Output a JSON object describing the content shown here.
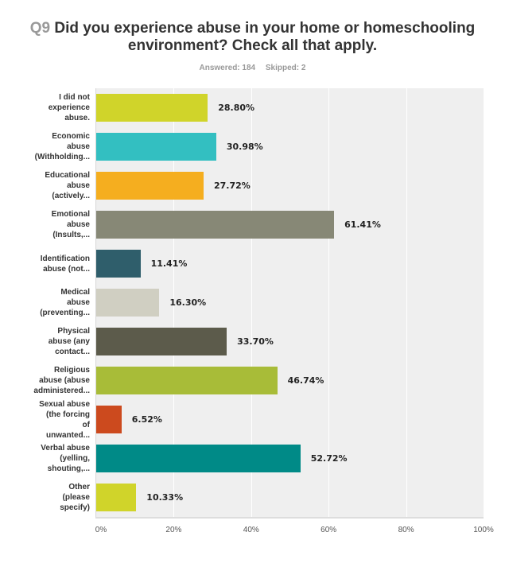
{
  "header": {
    "question_number": "Q9",
    "question_text": "Did you experience abuse in your home or homeschooling environment? Check all that apply.",
    "answered_label": "Answered: 184",
    "skipped_label": "Skipped: 2"
  },
  "axis": {
    "ticks": [
      "0%",
      "20%",
      "40%",
      "60%",
      "80%",
      "100%"
    ]
  },
  "rows": [
    {
      "label_lines": [
        "I did not",
        "experience",
        "abuse."
      ],
      "value": "28.80%",
      "color": "#D0D42A"
    },
    {
      "label_lines": [
        "Economic",
        "abuse",
        "(Withholding..."
      ],
      "value": "30.98%",
      "color": "#33BFC1"
    },
    {
      "label_lines": [
        "Educational",
        "abuse",
        "(actively..."
      ],
      "value": "27.72%",
      "color": "#F5AE1F"
    },
    {
      "label_lines": [
        "Emotional",
        "abuse",
        "(Insults,..."
      ],
      "value": "61.41%",
      "color": "#878876"
    },
    {
      "label_lines": [
        "Identification",
        "abuse (not..."
      ],
      "value": "11.41%",
      "color": "#2F5E6B"
    },
    {
      "label_lines": [
        "Medical",
        "abuse",
        "(preventing..."
      ],
      "value": "16.30%",
      "color": "#D0CFC2"
    },
    {
      "label_lines": [
        "Physical",
        "abuse (any",
        "contact..."
      ],
      "value": "33.70%",
      "color": "#5C5B4B"
    },
    {
      "label_lines": [
        "Religious",
        "abuse (abuse",
        "administered..."
      ],
      "value": "46.74%",
      "color": "#A8BC38"
    },
    {
      "label_lines": [
        "Sexual abuse",
        "(the forcing",
        "of",
        "unwanted..."
      ],
      "value": "6.52%",
      "color": "#CC4A1E"
    },
    {
      "label_lines": [
        "Verbal abuse",
        "(yelling,",
        "shouting,..."
      ],
      "value": "52.72%",
      "color": "#008A87"
    },
    {
      "label_lines": [
        "Other",
        "(please",
        "specify)"
      ],
      "value": "10.33%",
      "color": "#D0D42A"
    }
  ],
  "chart_data": {
    "type": "bar",
    "orientation": "horizontal",
    "title": "Q9 Did you experience abuse in your home or homeschooling environment? Check all that apply.",
    "subtitle": "Answered: 184    Skipped: 2",
    "categories": [
      "I did not experience abuse.",
      "Economic abuse (Withholding...",
      "Educational abuse (actively...",
      "Emotional abuse (Insults,...",
      "Identification abuse (not...",
      "Medical abuse (preventing...",
      "Physical abuse (any contact...",
      "Religious abuse (abuse administered...",
      "Sexual abuse (the forcing of unwanted...",
      "Verbal abuse (yelling, shouting,...",
      "Other (please specify)"
    ],
    "values": [
      28.8,
      30.98,
      27.72,
      61.41,
      11.41,
      16.3,
      33.7,
      46.74,
      6.52,
      52.72,
      10.33
    ],
    "data_labels": [
      "28.80%",
      "30.98%",
      "27.72%",
      "61.41%",
      "11.41%",
      "16.30%",
      "33.70%",
      "46.74%",
      "6.52%",
      "52.72%",
      "10.33%"
    ],
    "xlabel": "",
    "ylabel": "",
    "xlim": [
      0,
      100
    ],
    "xticks": [
      "0%",
      "20%",
      "40%",
      "60%",
      "80%",
      "100%"
    ],
    "grid": true,
    "legend": "none"
  }
}
